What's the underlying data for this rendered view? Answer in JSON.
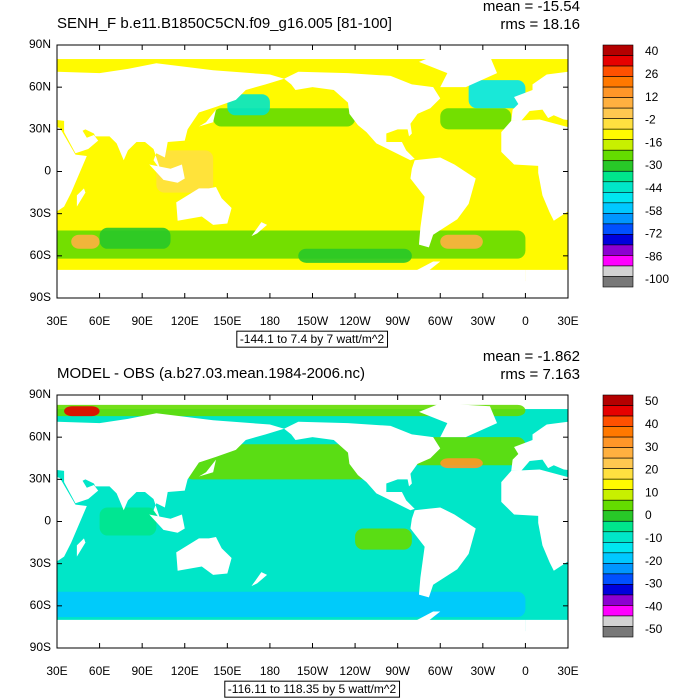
{
  "lat_labels": [
    "90N",
    "60N",
    "30N",
    "0",
    "30S",
    "60S",
    "90S"
  ],
  "lon_labels": [
    "30E",
    "60E",
    "90E",
    "120E",
    "150E",
    "180",
    "150W",
    "120W",
    "90W",
    "60W",
    "30W",
    "0",
    "30E"
  ],
  "panels": [
    {
      "title": "SENH_F b.e11.B1850C5CN.f09_g16.005 [81-100]",
      "mean": "mean = -15.54",
      "rms": "rms = 18.16",
      "contour_info": "-144.1 to 7.4 by 7 watt/m^2",
      "colorbar": {
        "labels": [
          40,
          26,
          12,
          -2,
          -16,
          -30,
          -44,
          -58,
          -72,
          -86,
          -100
        ],
        "colors": [
          "#b40000",
          "#e60000",
          "#ff5000",
          "#ff7800",
          "#ff9628",
          "#ffb040",
          "#ffc850",
          "#ffe040",
          "#fffa00",
          "#c8f000",
          "#64dc00",
          "#28c828",
          "#00e68c",
          "#00e6c8",
          "#00e6f0",
          "#00c8ff",
          "#0096ff",
          "#0050ff",
          "#0000dc",
          "#8c00d2",
          "#ff00ff",
          "#d2d2d2",
          "#787878"
        ]
      }
    },
    {
      "title": "MODEL - OBS (a.b27.03.mean.1984-2006.nc)",
      "mean": "mean = -1.862",
      "rms": "rms = 7.163",
      "contour_info": "-116.11 to 118.35 by 5 watt/m^2",
      "colorbar": {
        "labels": [
          50,
          40,
          30,
          20,
          10,
          0,
          -10,
          -20,
          -30,
          -40,
          -50
        ],
        "colors": [
          "#b40000",
          "#e60000",
          "#ff5000",
          "#ff7800",
          "#ff9628",
          "#ffb040",
          "#ffc850",
          "#ffe040",
          "#fffa00",
          "#c8f000",
          "#64dc00",
          "#28c828",
          "#00e68c",
          "#00e6c8",
          "#00e6f0",
          "#00c8ff",
          "#0096ff",
          "#0050ff",
          "#0000dc",
          "#8c00d2",
          "#ff00ff",
          "#d2d2d2",
          "#787878"
        ]
      }
    }
  ]
}
